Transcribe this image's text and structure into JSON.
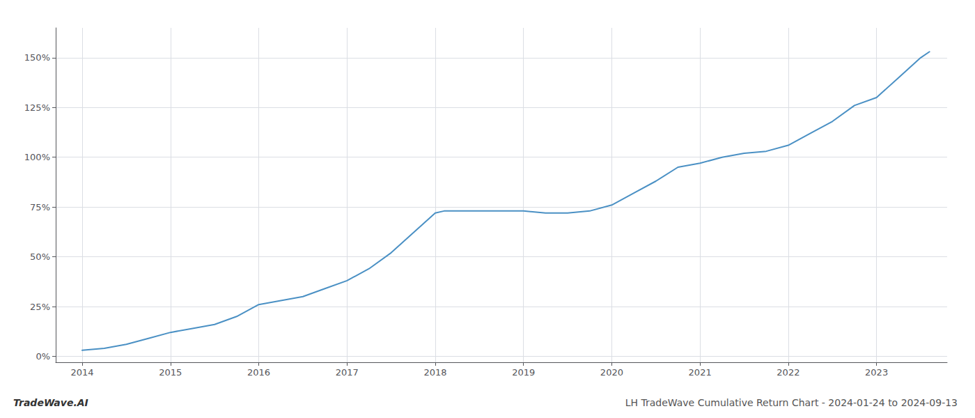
{
  "chart_data": {
    "type": "line",
    "title": "LH TradeWave Cumulative Return Chart - 2024-01-24 to 2024-09-13",
    "annotations": [
      "TradeWave.AI"
    ],
    "color": "#4a90c4",
    "x": [
      2014.0,
      2014.25,
      2014.5,
      2014.75,
      2015.0,
      2015.25,
      2015.5,
      2015.75,
      2016.0,
      2016.25,
      2016.5,
      2016.75,
      2017.0,
      2017.25,
      2017.5,
      2017.75,
      2018.0,
      2018.1,
      2018.25,
      2018.5,
      2018.75,
      2019.0,
      2019.25,
      2019.5,
      2019.75,
      2020.0,
      2020.25,
      2020.5,
      2020.75,
      2021.0,
      2021.25,
      2021.5,
      2021.75,
      2022.0,
      2022.25,
      2022.5,
      2022.75,
      2023.0,
      2023.25,
      2023.5,
      2023.6
    ],
    "values": [
      3,
      4,
      6,
      9,
      12,
      14,
      16,
      20,
      26,
      28,
      30,
      34,
      38,
      44,
      52,
      62,
      72,
      73,
      73,
      73,
      73,
      73,
      72,
      72,
      73,
      76,
      82,
      88,
      95,
      97,
      100,
      102,
      103,
      106,
      112,
      118,
      126,
      130,
      140,
      150,
      153
    ],
    "xlim": [
      2013.7,
      2023.8
    ],
    "ylim": [
      -3,
      165
    ],
    "xticks": [
      2014,
      2015,
      2016,
      2017,
      2018,
      2019,
      2020,
      2021,
      2022,
      2023
    ],
    "yticks": [
      {
        "value": 0,
        "label": "0%"
      },
      {
        "value": 25,
        "label": "25%"
      },
      {
        "value": 50,
        "label": "50%"
      },
      {
        "value": 75,
        "label": "75%"
      },
      {
        "value": 100,
        "label": "100%"
      },
      {
        "value": 125,
        "label": "125%"
      },
      {
        "value": 150,
        "label": "150%"
      }
    ],
    "grid": true
  }
}
